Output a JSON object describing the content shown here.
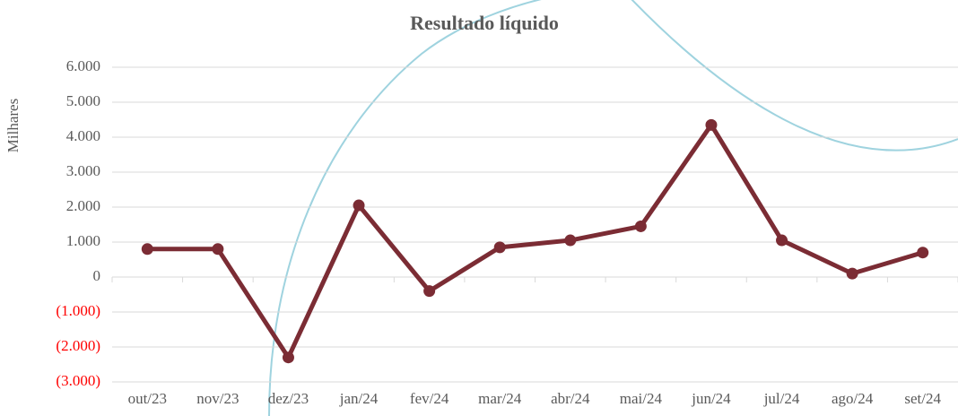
{
  "chart_data": {
    "type": "line",
    "title": "Resultado líquido",
    "y_label": "Milhares",
    "categories": [
      "out/23",
      "nov/23",
      "dez/23",
      "jan/24",
      "fev/24",
      "mar/24",
      "abr/24",
      "mai/24",
      "jun/24",
      "jul/24",
      "ago/24",
      "set/24"
    ],
    "series": [
      {
        "name": "Resultado líquido",
        "color": "#7b2c34",
        "values": [
          800,
          800,
          -2300,
          2050,
          -400,
          850,
          1050,
          1450,
          4350,
          1050,
          100,
          700
        ]
      }
    ],
    "ylim": [
      -3000,
      6000
    ],
    "yticks": [
      {
        "value": -3000,
        "label": "(3.000)"
      },
      {
        "value": -2000,
        "label": "(2.000)"
      },
      {
        "value": -1000,
        "label": "(1.000)"
      },
      0,
      {
        "value": 1000,
        "label": "1.000"
      },
      {
        "value": 2000,
        "label": "2.000"
      },
      {
        "value": 3000,
        "label": "3.000"
      },
      {
        "value": 4000,
        "label": "4.000"
      },
      {
        "value": 5000,
        "label": "5.000"
      },
      {
        "value": 6000,
        "label": "6.000"
      }
    ],
    "negative_tick_color": "#ff0000",
    "grid": true
  }
}
